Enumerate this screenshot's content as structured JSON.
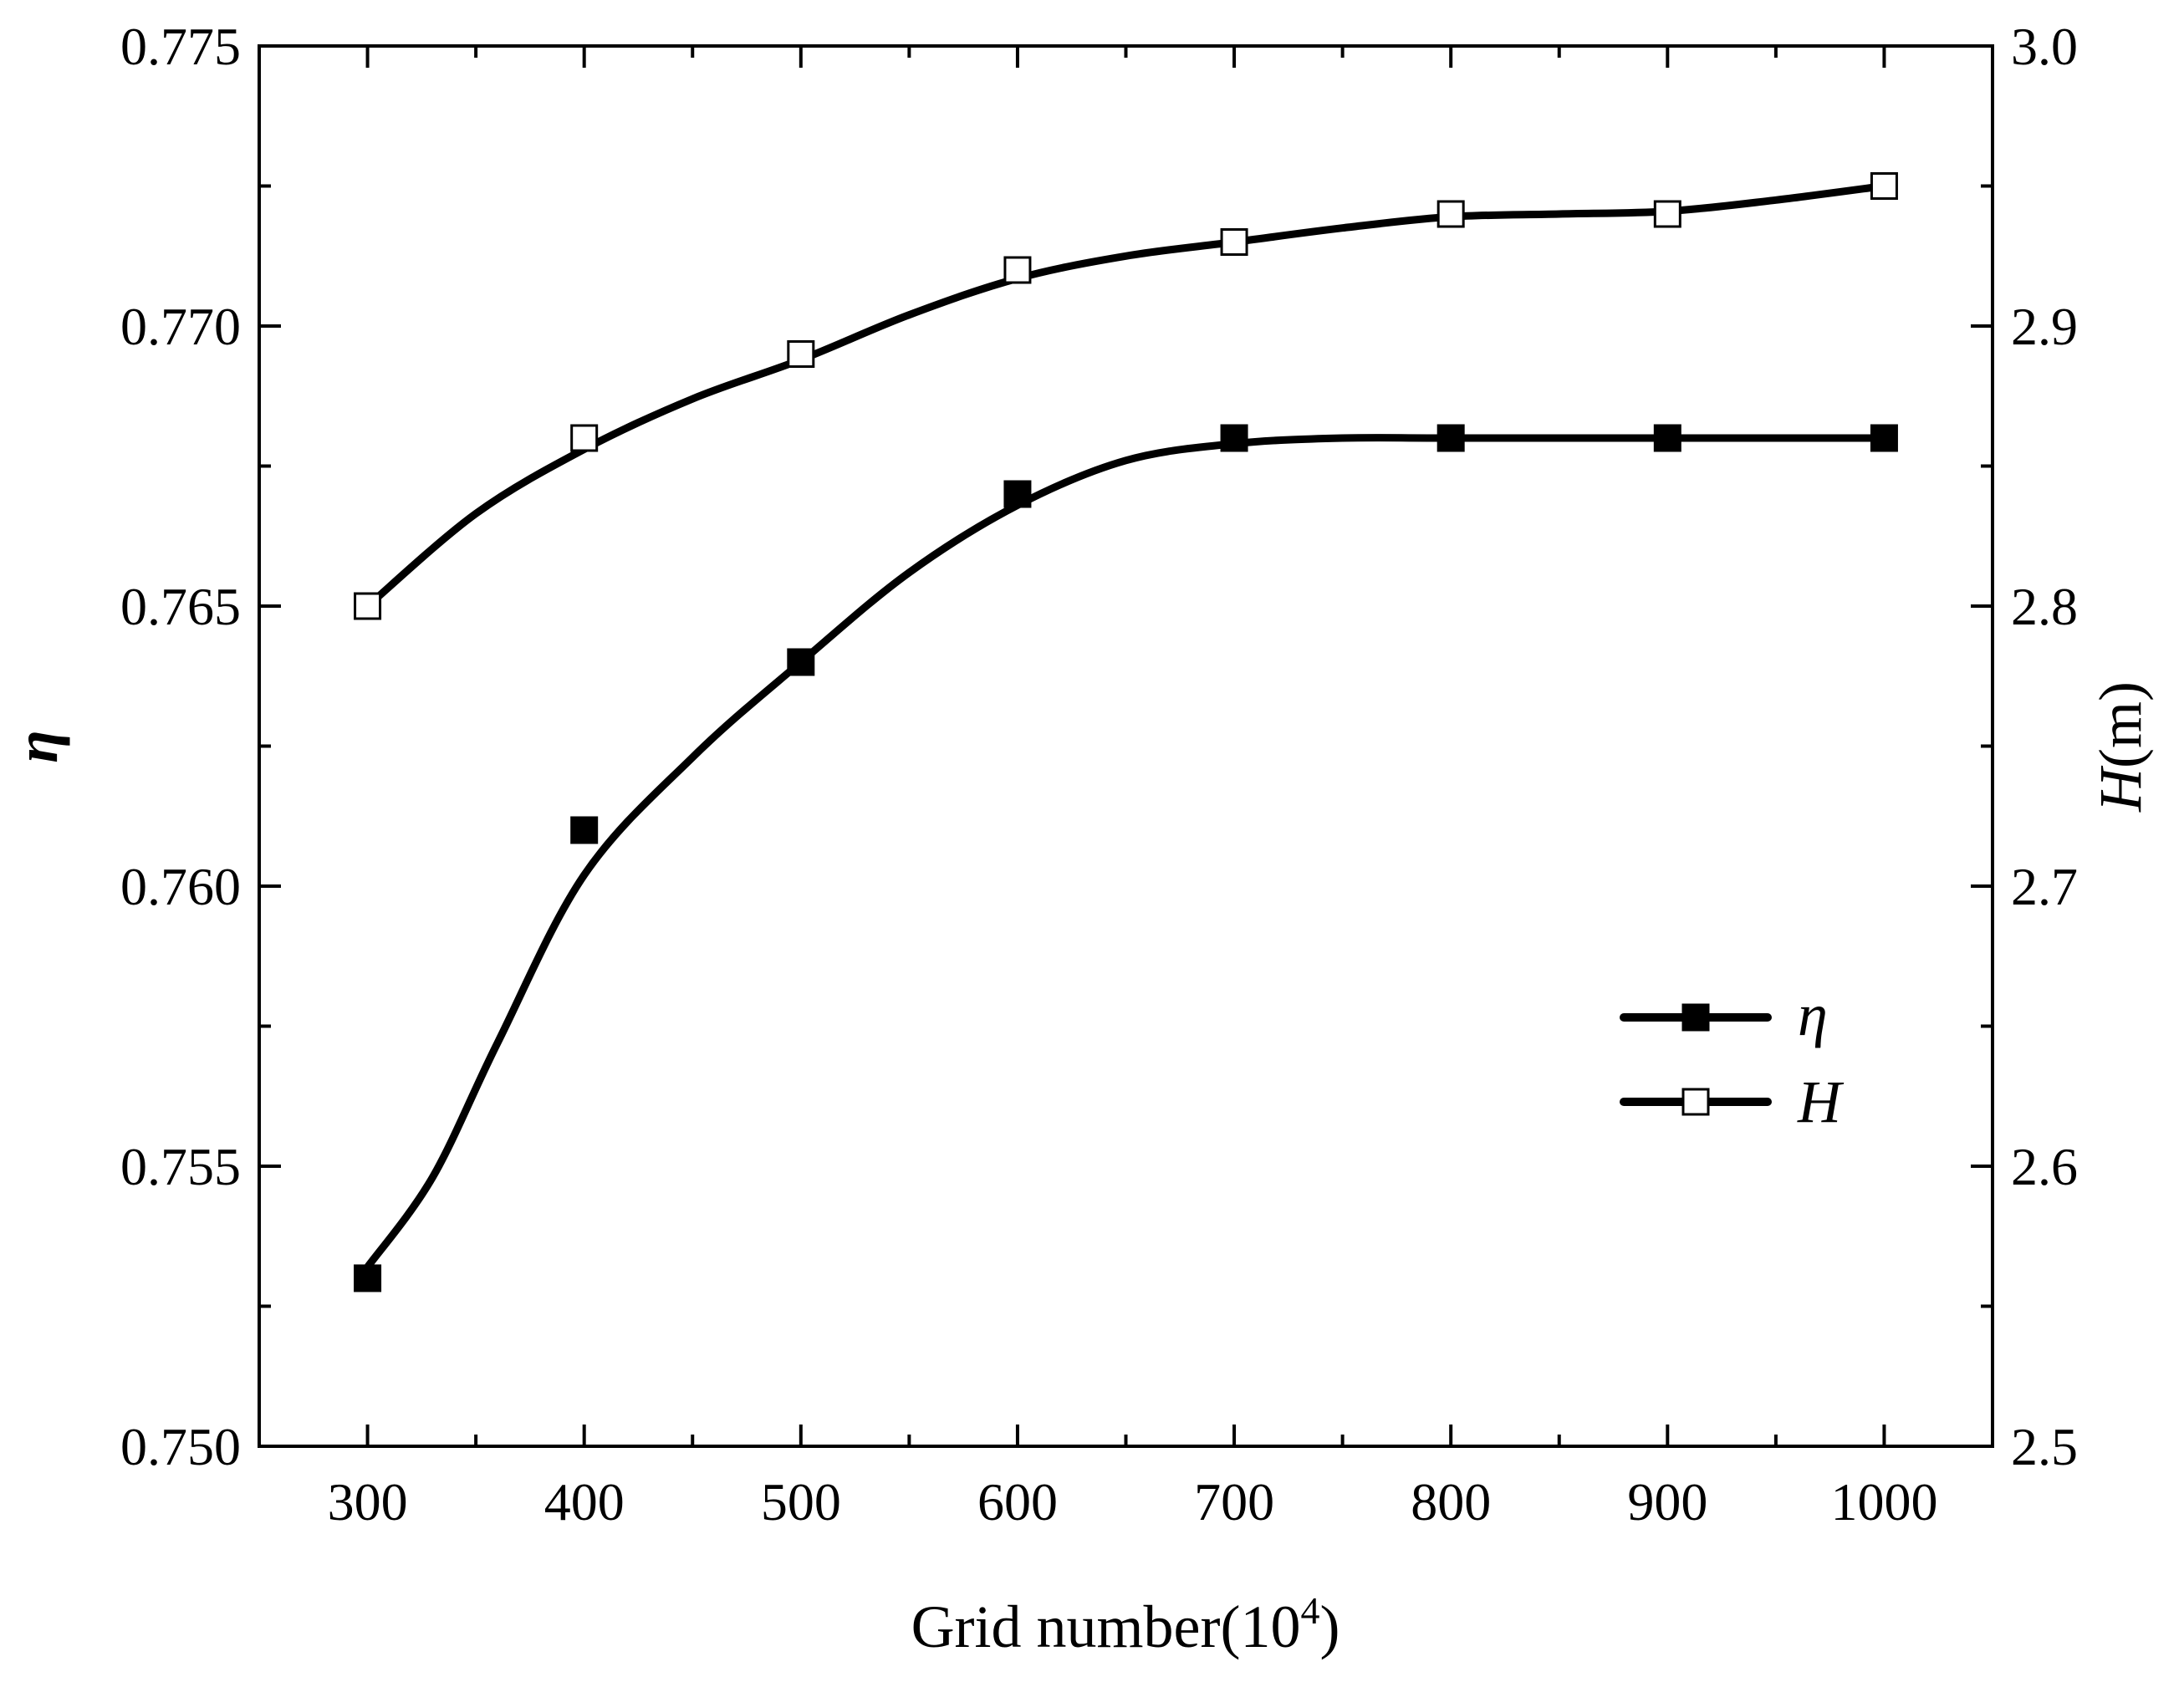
{
  "chart_data": {
    "type": "line",
    "xlabel": "Grid number(10",
    "xlabel_sup": "4",
    "xlabel_close": ")",
    "ylabel_left": "η",
    "ylabel_right_italic": "H",
    "ylabel_right_rest": "(m)",
    "xlim": [
      250,
      1050
    ],
    "x_ticks": [
      300,
      400,
      500,
      600,
      700,
      800,
      900,
      1000
    ],
    "y_left": {
      "lim": [
        0.75,
        0.775
      ],
      "ticks": [
        "0.750",
        "0.755",
        "0.760",
        "0.765",
        "0.770",
        "0.775"
      ]
    },
    "y_right": {
      "lim": [
        2.5,
        3.0
      ],
      "ticks": [
        "2.5",
        "2.6",
        "2.7",
        "2.8",
        "2.9",
        "3.0"
      ]
    },
    "legend_position": "center-right",
    "series": [
      {
        "name": "η",
        "axis": "left",
        "marker": "filled-square",
        "x": [
          300,
          400,
          500,
          600,
          700,
          800,
          900,
          1000
        ],
        "values": [
          0.753,
          0.761,
          0.764,
          0.767,
          0.768,
          0.768,
          0.768,
          0.768
        ],
        "fit_curve": [
          [
            300,
            0.7532
          ],
          [
            330,
            0.7548
          ],
          [
            360,
            0.7572
          ],
          [
            400,
            0.7602
          ],
          [
            450,
            0.7623
          ],
          [
            500,
            0.764
          ],
          [
            550,
            0.7656
          ],
          [
            600,
            0.7668
          ],
          [
            650,
            0.7676
          ],
          [
            700,
            0.7679
          ],
          [
            750,
            0.768
          ],
          [
            800,
            0.768
          ],
          [
            900,
            0.768
          ],
          [
            1000,
            0.768
          ]
        ]
      },
      {
        "name": "H",
        "axis": "right",
        "marker": "open-square",
        "x": [
          300,
          400,
          500,
          600,
          700,
          800,
          900,
          1000
        ],
        "values": [
          2.8,
          2.86,
          2.89,
          2.92,
          2.93,
          2.94,
          2.94,
          2.95
        ],
        "fit_curve": [
          [
            300,
            2.8
          ],
          [
            350,
            2.833
          ],
          [
            400,
            2.856
          ],
          [
            450,
            2.874
          ],
          [
            500,
            2.888
          ],
          [
            550,
            2.904
          ],
          [
            600,
            2.917
          ],
          [
            650,
            2.925
          ],
          [
            700,
            2.93
          ],
          [
            750,
            2.935
          ],
          [
            800,
            2.939
          ],
          [
            850,
            2.94
          ],
          [
            900,
            2.941
          ],
          [
            950,
            2.945
          ],
          [
            1000,
            2.95
          ]
        ]
      }
    ]
  }
}
